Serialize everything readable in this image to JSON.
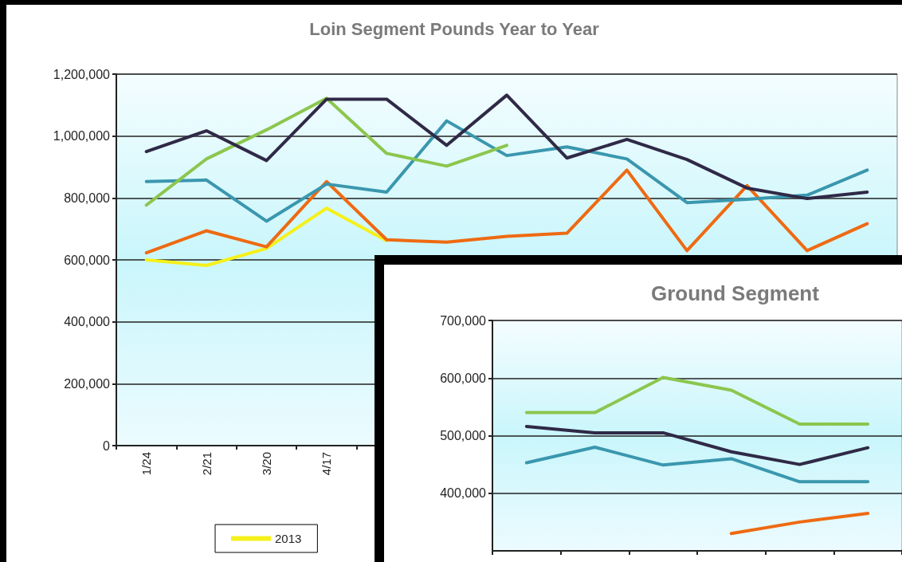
{
  "chart_data": [
    {
      "type": "line",
      "title": "Loin Segment Pounds Year to Year",
      "categories": [
        "1/24",
        "2/21",
        "3/20",
        "4/17",
        null,
        null,
        null,
        null,
        null,
        null,
        null,
        null,
        null
      ],
      "ylim": [
        0,
        1200000
      ],
      "yticks": [
        0,
        {
          "value": 200000,
          "label": "200,000"
        },
        {
          "value": 400000,
          "label": "400,000"
        },
        {
          "value": 600000,
          "label": "600,000"
        },
        {
          "value": 800000,
          "label": "800,000"
        },
        {
          "value": 1000000,
          "label": "1,000,000"
        },
        {
          "value": 1200000,
          "label": "1,200,000"
        }
      ],
      "grid": "y",
      "legend": "bottom",
      "marker": "none",
      "line_style": "solid",
      "series": [
        {
          "name": "2013",
          "color": "#f5f01a",
          "values": [
            600000,
            582000,
            637000,
            767000,
            662000,
            null,
            null,
            null,
            null,
            null,
            null,
            null,
            null
          ]
        },
        {
          "color": "#ee6a12",
          "values": [
            623000,
            694000,
            642000,
            853000,
            665000,
            657000,
            676000,
            686000,
            890000,
            630000,
            840000,
            630000,
            717000
          ]
        },
        {
          "color": "#3a97ae",
          "values": [
            853000,
            858000,
            725000,
            845000,
            819000,
            1049000,
            937000,
            965000,
            926000,
            785000,
            796000,
            809000,
            890000
          ]
        },
        {
          "color": "#8cc64e",
          "values": [
            777000,
            926000,
            1020000,
            1122000,
            944000,
            903000,
            970000,
            null,
            null,
            null,
            null,
            null,
            null
          ]
        },
        {
          "color": "#2f2947",
          "values": [
            950000,
            1017000,
            921000,
            1119000,
            1119000,
            970000,
            1132000,
            929000,
            989000,
            924000,
            832000,
            798000,
            819000
          ]
        }
      ]
    },
    {
      "type": "line",
      "title": "Ground Segment",
      "categories": [
        null,
        null,
        null,
        null,
        null,
        null
      ],
      "ylim": [
        300000,
        700000
      ],
      "yticks": [
        {
          "value": 400000,
          "label": "400,000"
        },
        {
          "value": 500000,
          "label": "500,000"
        },
        {
          "value": 600000,
          "label": "600,000"
        },
        {
          "value": 700000,
          "label": "700,000"
        }
      ],
      "grid": "y",
      "legend": false,
      "marker": "none",
      "line_style": "solid",
      "series": [
        {
          "color": "#ee6a12",
          "values": [
            null,
            null,
            null,
            330000,
            350000,
            365000
          ]
        },
        {
          "color": "#3a97ae",
          "values": [
            453000,
            480000,
            449000,
            460000,
            420000,
            420000
          ]
        },
        {
          "color": "#8cc64e",
          "values": [
            540000,
            540000,
            601000,
            579000,
            520000,
            520000
          ]
        },
        {
          "color": "#2f2947",
          "values": [
            516000,
            505000,
            505000,
            472000,
            450000,
            479000
          ]
        }
      ]
    }
  ]
}
